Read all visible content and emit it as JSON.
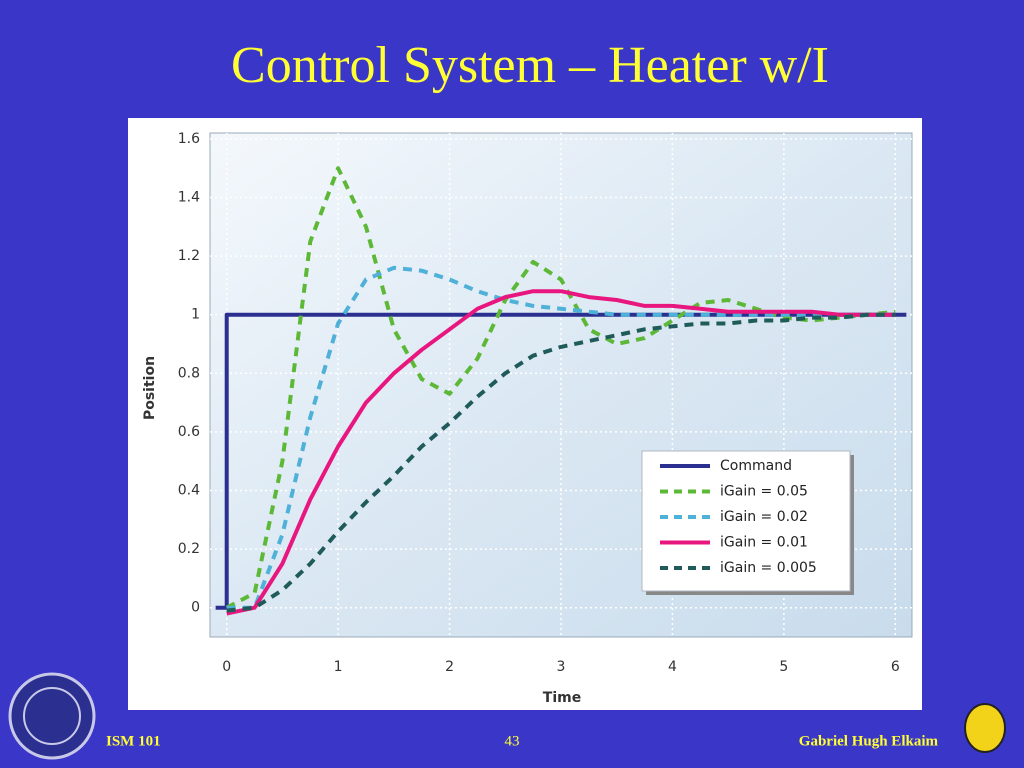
{
  "chart_data": {
    "type": "line",
    "title": "Control System – Heater w/I",
    "x_label": "Time",
    "y_label": "Position",
    "xlim": [
      -0.15,
      6.15
    ],
    "ylim": [
      -0.1,
      1.62
    ],
    "xticks": [
      0,
      1,
      2,
      3,
      4,
      5,
      6
    ],
    "yticks": [
      0,
      0.2,
      0.4,
      0.6,
      0.8,
      1,
      1.2,
      1.4,
      1.6
    ],
    "grid": true,
    "legend": "lower right",
    "series": [
      {
        "name": "Command",
        "color": "#2b2f8f",
        "style": "solid",
        "x": [
          -0.1,
          0,
          0,
          6.1
        ],
        "values": [
          0,
          0,
          1,
          1
        ]
      },
      {
        "name": "iGain = 0.05",
        "color": "#5cb836",
        "style": "dashed",
        "x": [
          0,
          0.25,
          0.5,
          0.75,
          1,
          1.25,
          1.5,
          1.75,
          2,
          2.25,
          2.5,
          2.75,
          3,
          3.25,
          3.5,
          3.75,
          4,
          4.25,
          4.5,
          4.75,
          5,
          5.25,
          5.5,
          5.75,
          6
        ],
        "values": [
          0,
          0.05,
          0.5,
          1.25,
          1.5,
          1.3,
          0.95,
          0.78,
          0.73,
          0.85,
          1.05,
          1.18,
          1.12,
          0.95,
          0.9,
          0.92,
          0.98,
          1.04,
          1.05,
          1.02,
          0.99,
          0.98,
          0.99,
          1,
          1.01
        ]
      },
      {
        "name": "iGain = 0.02",
        "color": "#4fb0d8",
        "style": "dashed",
        "x": [
          0,
          0.25,
          0.5,
          0.75,
          1,
          1.25,
          1.5,
          1.75,
          2,
          2.25,
          2.5,
          2.75,
          3,
          3.25,
          3.5,
          3.75,
          4,
          4.25,
          4.5,
          4.75,
          5,
          5.25,
          5.5,
          5.75,
          6
        ],
        "values": [
          0,
          0,
          0.25,
          0.65,
          0.97,
          1.12,
          1.16,
          1.15,
          1.12,
          1.08,
          1.05,
          1.03,
          1.02,
          1.01,
          1,
          1,
          1,
          1,
          1,
          1,
          1,
          1,
          1,
          1,
          1
        ]
      },
      {
        "name": "iGain = 0.01",
        "color": "#e8177f",
        "style": "solid",
        "x": [
          0,
          0.25,
          0.5,
          0.75,
          1,
          1.25,
          1.5,
          1.75,
          2,
          2.25,
          2.5,
          2.75,
          3,
          3.25,
          3.5,
          3.75,
          4,
          4.25,
          4.5,
          4.75,
          5,
          5.25,
          5.5,
          5.75,
          6
        ],
        "values": [
          -0.02,
          0,
          0.15,
          0.37,
          0.55,
          0.7,
          0.8,
          0.88,
          0.95,
          1.02,
          1.06,
          1.08,
          1.08,
          1.06,
          1.05,
          1.03,
          1.03,
          1.02,
          1.01,
          1.01,
          1.01,
          1.01,
          1,
          1,
          1
        ]
      },
      {
        "name": "iGain = 0.005",
        "color": "#1f5b5a",
        "style": "dashed",
        "x": [
          0,
          0.25,
          0.5,
          0.75,
          1,
          1.25,
          1.5,
          1.75,
          2,
          2.25,
          2.5,
          2.75,
          3,
          3.25,
          3.5,
          3.75,
          4,
          4.25,
          4.5,
          4.75,
          5,
          5.25,
          5.5,
          5.75,
          6
        ],
        "values": [
          -0.01,
          0,
          0.06,
          0.15,
          0.26,
          0.36,
          0.45,
          0.55,
          0.63,
          0.72,
          0.8,
          0.86,
          0.89,
          0.91,
          0.93,
          0.95,
          0.96,
          0.97,
          0.97,
          0.98,
          0.98,
          0.99,
          0.99,
          1,
          1
        ]
      }
    ]
  },
  "footer": {
    "course": "ISM 101",
    "page": 43,
    "author": "Gabriel Hugh Elkaim"
  }
}
